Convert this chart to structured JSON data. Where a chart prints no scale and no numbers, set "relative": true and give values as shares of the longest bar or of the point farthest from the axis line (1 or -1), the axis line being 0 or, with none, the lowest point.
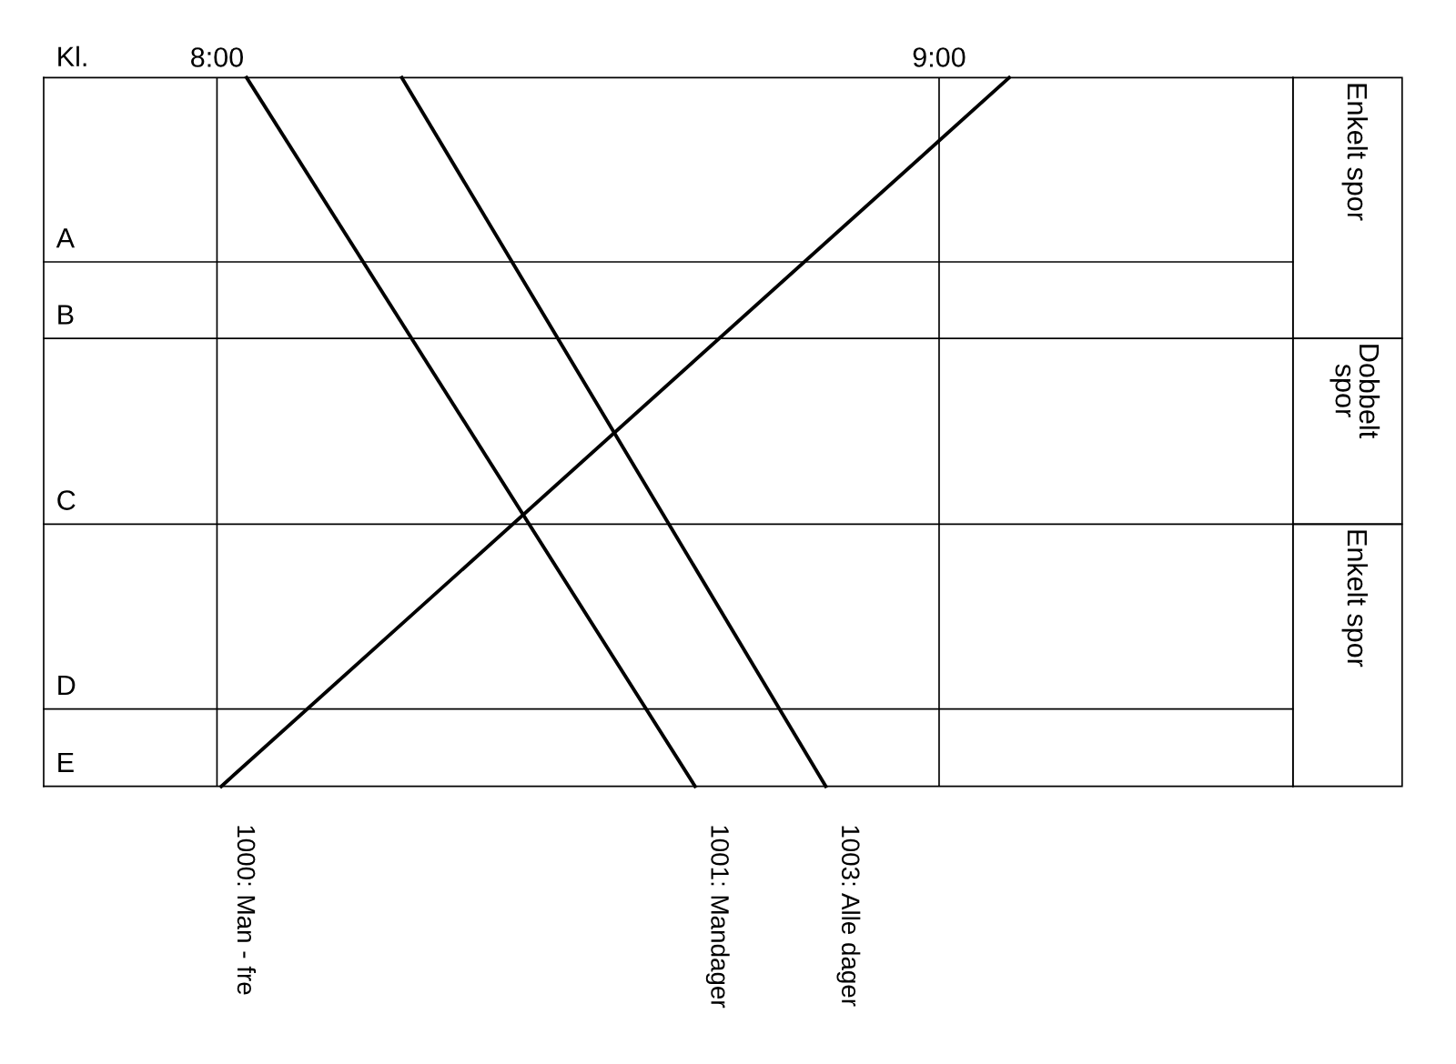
{
  "chart_data": {
    "type": "line",
    "xlabel": "Kl.",
    "relative": true,
    "xlim": [
      7.76,
      9.49
    ],
    "xticks": [
      {
        "value": 8,
        "label": "8:00"
      },
      {
        "value": 9,
        "label": "9:00"
      }
    ],
    "grid": "x",
    "legend": false,
    "marker": "none",
    "line_style": "solid",
    "series": [
      {
        "name": "1000: Man - fre",
        "color": "#000000",
        "x": [
          8.006,
          9.097
        ],
        "values": [
          0,
          1
        ]
      },
      {
        "name": "1001: Mandager",
        "color": "#000000",
        "x": [
          8.041,
          8.662
        ],
        "values": [
          1,
          0
        ]
      },
      {
        "name": "1003: Alle dager",
        "color": "#000000",
        "x": [
          8.256,
          8.843
        ],
        "values": [
          1,
          0
        ]
      }
    ],
    "ref_lines": [
      {
        "axis": "y",
        "value": 0.74,
        "label": "A"
      },
      {
        "axis": "y",
        "value": 0.632,
        "label": "B"
      },
      {
        "axis": "y",
        "value": 0.37,
        "label": "C"
      },
      {
        "axis": "y",
        "value": 0.109,
        "label": "D"
      }
    ],
    "annotations": [
      "Enkelt spor",
      "Dobbelt\nspor",
      "Enkelt spor",
      "E"
    ]
  }
}
